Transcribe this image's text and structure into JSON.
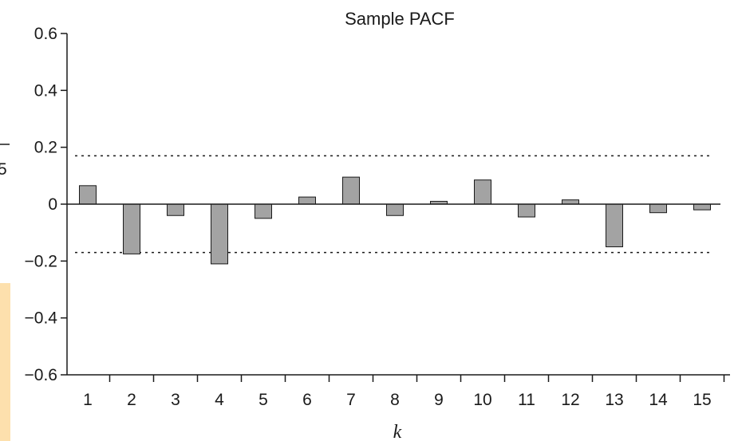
{
  "chart_data": {
    "type": "bar",
    "title": "Sample PACF",
    "xlabel": "k",
    "ylabel_fragment": "5",
    "categories": [
      "1",
      "2",
      "3",
      "4",
      "5",
      "6",
      "7",
      "8",
      "9",
      "10",
      "11",
      "12",
      "13",
      "14",
      "15"
    ],
    "values": [
      0.065,
      -0.175,
      -0.04,
      -0.21,
      -0.05,
      0.025,
      0.095,
      -0.04,
      0.01,
      0.085,
      -0.045,
      0.015,
      -0.15,
      -0.03,
      -0.02
    ],
    "ylim": [
      -0.6,
      0.6
    ],
    "yticks": [
      0.6,
      0.4,
      0.2,
      0,
      -0.2,
      -0.4,
      -0.6
    ],
    "ytick_labels": [
      "0.6",
      "0.4",
      "0.2",
      "0",
      "−0.2",
      "−0.4",
      "−0.6"
    ],
    "confidence_bounds": [
      0.17,
      -0.17
    ],
    "bar_color": "#a3a3a3",
    "grid": false,
    "legend": "none"
  },
  "colors": {
    "bar": "#a3a3a3",
    "axis": "#1a1a1a",
    "side_strip": "#fde0ad"
  }
}
